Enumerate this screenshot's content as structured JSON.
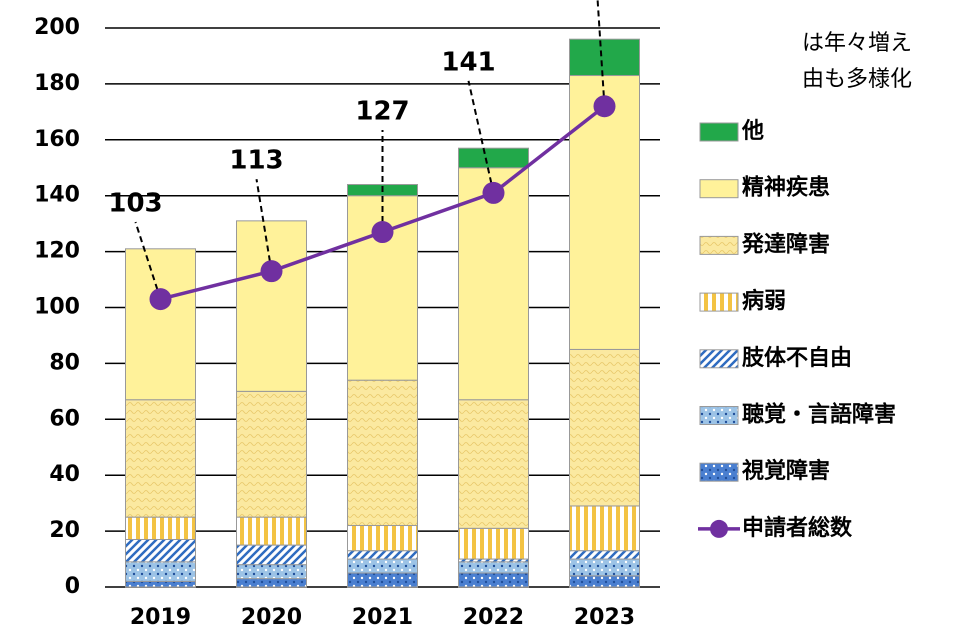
{
  "chart_data": {
    "type": "bar",
    "stacked": true,
    "categories": [
      "2019",
      "2020",
      "2021",
      "2022",
      "2023"
    ],
    "ylim": [
      0,
      200
    ],
    "yticks": [
      0,
      20,
      40,
      60,
      80,
      100,
      120,
      140,
      160,
      180,
      200
    ],
    "grid": true,
    "annotations": [
      "は年々増え",
      "由も多様化"
    ],
    "series": [
      {
        "name": "視覚障害",
        "color": "#4a7fd0",
        "pattern": "dots",
        "values": [
          2,
          3,
          5,
          5,
          4
        ]
      },
      {
        "name": "聴覚・言語障害",
        "color": "#9cc3e6",
        "pattern": "dots",
        "values": [
          7,
          5,
          5,
          4,
          6
        ]
      },
      {
        "name": "肢体不自由",
        "color": "#2f6cc0",
        "pattern": "diagonal",
        "values": [
          8,
          7,
          3,
          1,
          3
        ]
      },
      {
        "name": "病弱",
        "color": "#f3c343",
        "pattern": "vertical",
        "values": [
          8,
          10,
          9,
          11,
          16
        ]
      },
      {
        "name": "発達障害",
        "color": "#fbe9a0",
        "pattern": "wave",
        "values": [
          42,
          45,
          52,
          46,
          56
        ]
      },
      {
        "name": "精神疾患",
        "color": "#fff29a",
        "pattern": "solid",
        "values": [
          54,
          61,
          66,
          83,
          98
        ]
      },
      {
        "name": "他",
        "color": "#22a84a",
        "pattern": "solid",
        "values": [
          0,
          0,
          4,
          7,
          13
        ]
      },
      {
        "name": "申請者総数",
        "color": "#7030a0",
        "type": "line",
        "values": [
          103,
          113,
          127,
          141,
          172
        ]
      }
    ]
  }
}
